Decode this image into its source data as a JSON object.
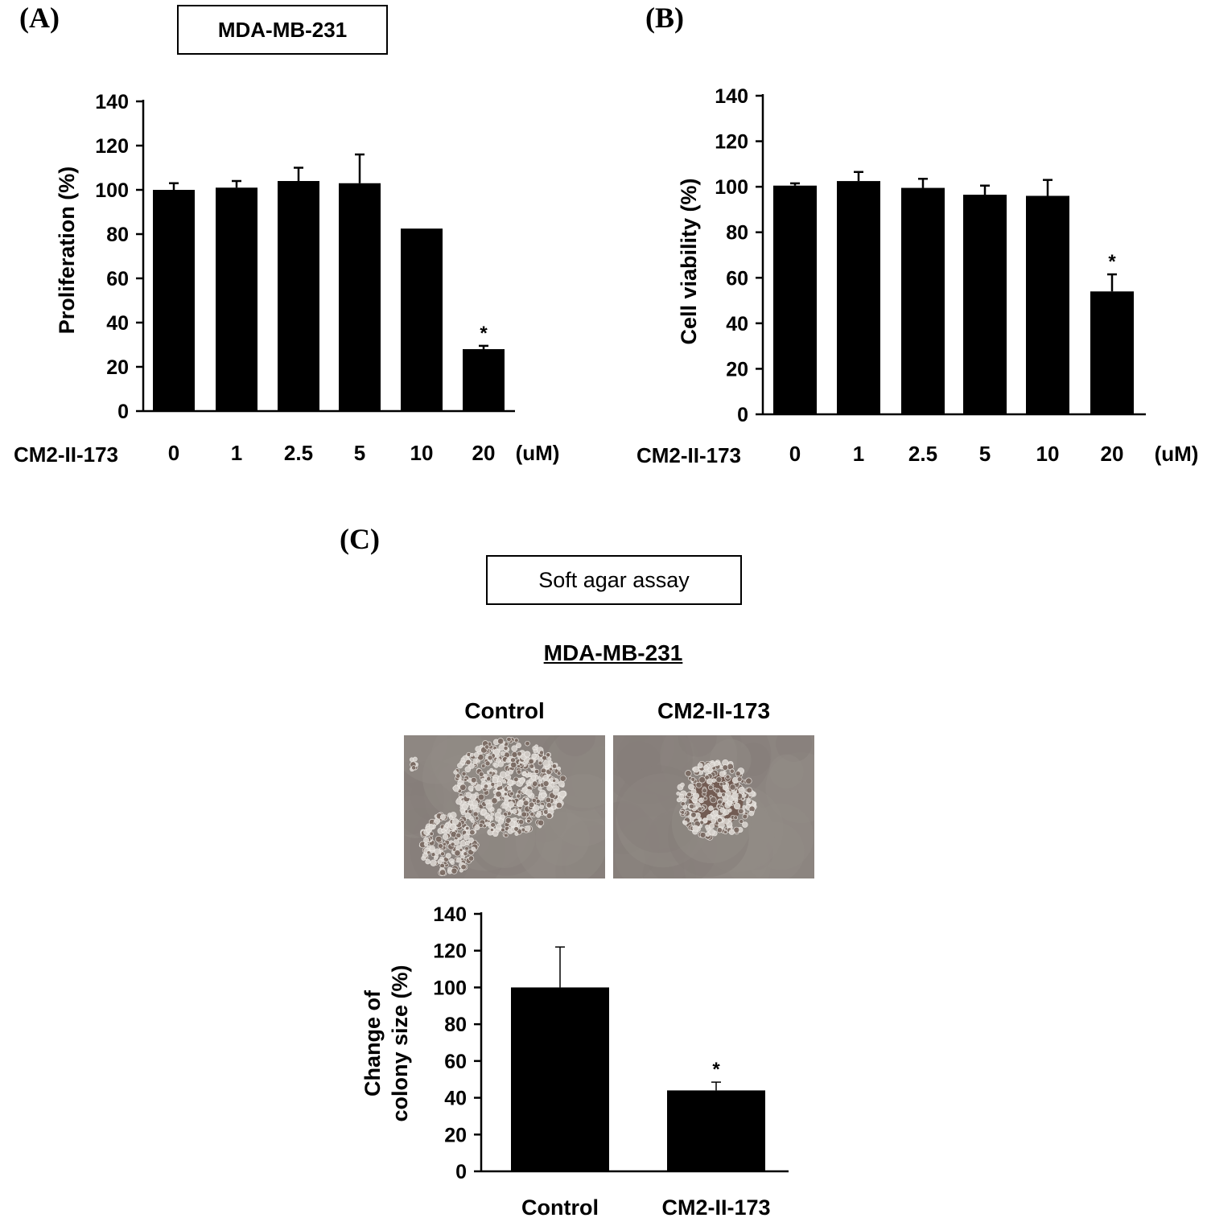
{
  "panels": {
    "a_label": "(A)",
    "b_label": "(B)",
    "c_label": "(C)"
  },
  "panel_a_title": "MDA-MB-231",
  "panel_c": {
    "box_title": "Soft agar assay",
    "cell_line": "MDA-MB-231",
    "image_labels": [
      "Control",
      "CM2-II-173"
    ]
  },
  "colors": {
    "bar": "#000000",
    "axis": "#000000",
    "background": "#ffffff"
  },
  "chart_data": [
    {
      "id": "A",
      "type": "bar",
      "title": "",
      "ylabel": "Proliferation (%)",
      "xlabel_prefix": "CM2-II-173",
      "x_unit": "(uM)",
      "categories": [
        "0",
        "1",
        "2.5",
        "5",
        "10",
        "20"
      ],
      "values": [
        100,
        101,
        104,
        103,
        82.5,
        28
      ],
      "errors": [
        3,
        3,
        6,
        13,
        0,
        1.5
      ],
      "significance": [
        "",
        "",
        "",
        "",
        "",
        "*"
      ],
      "ylim": [
        0,
        140
      ],
      "yticks": [
        0,
        20,
        40,
        60,
        80,
        100,
        120,
        140
      ],
      "ytick_labels": [
        "0",
        "20",
        "40",
        "60",
        "80",
        "100",
        "120",
        "140"
      ]
    },
    {
      "id": "B",
      "type": "bar",
      "title": "",
      "ylabel": "Cell viability (%)",
      "xlabel_prefix": "CM2-II-173",
      "x_unit": "(uM)",
      "categories": [
        "0",
        "1",
        "2.5",
        "5",
        "10",
        "20"
      ],
      "values": [
        100.5,
        102.5,
        99.5,
        96.5,
        96,
        54
      ],
      "errors": [
        1,
        4,
        4,
        4,
        7,
        7.5
      ],
      "significance": [
        "",
        "",
        "",
        "",
        "",
        "*"
      ],
      "ylim": [
        0,
        140
      ],
      "yticks": [
        0,
        20,
        40,
        60,
        80,
        100,
        120,
        140
      ],
      "ytick_labels": [
        "0",
        "20",
        "40",
        "60",
        "80",
        "100",
        "120",
        "140"
      ]
    },
    {
      "id": "C",
      "type": "bar",
      "title": "",
      "ylabel_lines": [
        "Change of",
        "colony size (%)"
      ],
      "categories": [
        "Control",
        "CM2-II-173"
      ],
      "values": [
        100,
        44
      ],
      "errors": [
        22,
        4.5
      ],
      "significance": [
        "",
        "*"
      ],
      "ylim": [
        0,
        140
      ],
      "yticks": [
        0,
        20,
        40,
        60,
        80,
        100,
        120,
        140
      ],
      "ytick_labels": [
        "0",
        "20",
        "40",
        "60",
        "80",
        "100",
        "120",
        "140"
      ]
    }
  ]
}
